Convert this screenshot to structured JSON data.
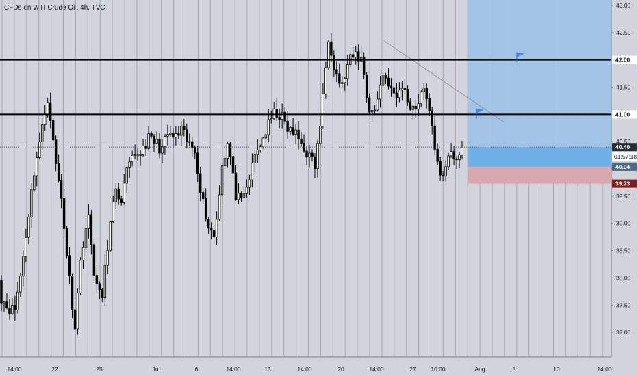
{
  "chart_data": {
    "type": "candlestick",
    "title": "CFDs on WTI Crude Oil, 4h, TVC",
    "y_axis": {
      "ticks": [
        "43.00",
        "42.50",
        "42.00",
        "41.50",
        "41.00",
        "40.50",
        "40.00",
        "39.50",
        "39.00",
        "38.50",
        "38.00",
        "37.50",
        "37.00"
      ],
      "ylim": [
        36.55,
        43.1
      ],
      "position": "right"
    },
    "x_axis": {
      "labels": [
        "14:00",
        "22",
        "25",
        "Jul",
        "6",
        "14:00",
        "13",
        "14:00",
        "20",
        "14:00",
        "27",
        "10:00",
        "Aug",
        "5",
        "10",
        "14:00"
      ]
    },
    "price_labels": {
      "level_42": "42.00",
      "level_41": "41.00",
      "current": "40.40",
      "countdown": "01:57:18",
      "entry": "40.04",
      "stop": "39.73"
    },
    "horizontal_levels": [
      42.0,
      41.0
    ],
    "current_price": 40.4,
    "position": {
      "type": "long",
      "entry": 40.04,
      "target": 43.1,
      "stop": 39.73
    },
    "trendline": {
      "from_price": 42.35,
      "to_price": 40.86
    },
    "grid": "vertical",
    "colors": {
      "background": "#d1d4dc",
      "candle": "#000000",
      "profit_zone": "#9fc3e6",
      "profit_band": "#6fb0e6",
      "loss_zone": "#d7a8ad",
      "flag": "#3d8ee0",
      "stop_label": "#7d1f1f",
      "current_label": "#2a2e39"
    },
    "key_points": [
      37.65,
      37.45,
      37.4,
      38.15,
      39.1,
      40.05,
      40.65,
      41.35,
      40.2,
      39.45,
      38.2,
      37.1,
      38.5,
      39.15,
      38.0,
      37.55,
      38.7,
      39.55,
      39.45,
      40.05,
      40.2,
      40.35,
      40.55,
      40.5,
      40.35,
      40.65,
      40.55,
      40.7,
      40.45,
      40.35,
      39.5,
      38.95,
      38.75,
      40.05,
      40.5,
      39.55,
      39.35,
      39.75,
      40.25,
      40.5,
      40.8,
      41.05,
      40.95,
      40.7,
      40.65,
      40.45,
      40.25,
      40.05,
      41.05,
      42.45,
      41.8,
      41.5,
      41.95,
      42.1,
      42.0,
      41.1,
      41.05,
      41.75,
      41.6,
      41.25,
      41.55,
      41.2,
      41.1,
      41.45,
      41.25,
      40.2,
      39.85,
      40.3,
      40.1,
      40.4
    ]
  }
}
